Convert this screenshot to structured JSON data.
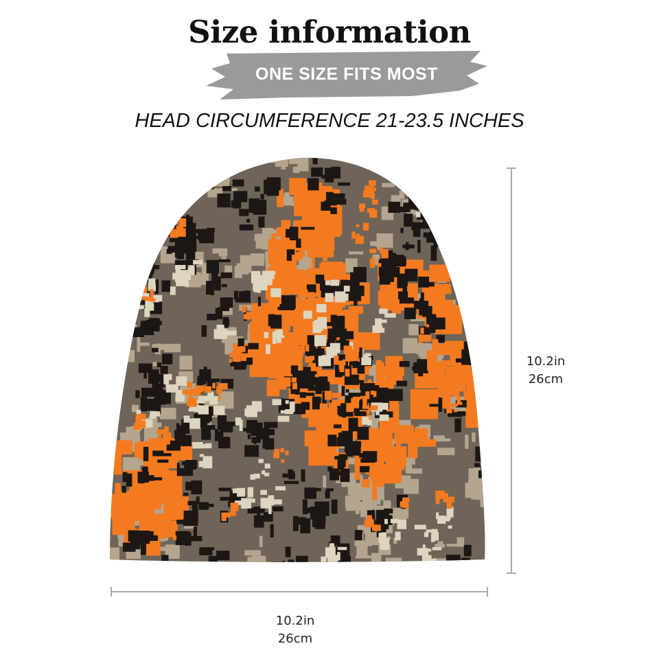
{
  "title": "Size information",
  "banner": "ONE SIZE FITS MOST",
  "subtitle": "HEAD CIRCUMFERENCE 21-23.5 INCHES",
  "height_measure": {
    "inches": "10.2in",
    "cm": "26cm"
  },
  "width_measure": {
    "inches": "10.2in",
    "cm": "26cm"
  },
  "colors": {
    "orange": "#f47a20",
    "black": "#1c1714",
    "brown": "#6e6458",
    "tan": "#b3a58e",
    "cream": "#ddd5bf",
    "banner": "#9a9a9a"
  }
}
